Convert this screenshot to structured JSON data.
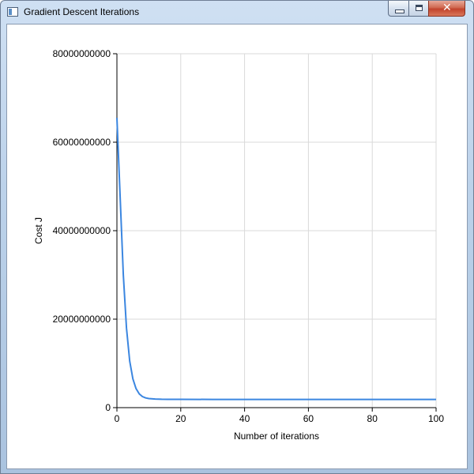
{
  "window": {
    "title": "Gradient Descent Iterations",
    "controls": {
      "minimize_icon": "minimize-icon",
      "maximize_icon": "maximize-icon",
      "close_icon": "close-icon",
      "close_glyph": "✕"
    }
  },
  "colors": {
    "line": "#3b86e0",
    "grid": "#d9d9d9",
    "axis": "#000000"
  },
  "chart_data": {
    "type": "line",
    "xlabel": "Number of iterations",
    "ylabel": "Cost J",
    "xlim": [
      0,
      100
    ],
    "ylim": [
      0,
      80000000000
    ],
    "x_ticks": [
      0,
      20,
      40,
      60,
      80,
      100
    ],
    "y_ticks": [
      0,
      20000000000,
      40000000000,
      60000000000,
      80000000000
    ],
    "x_tick_labels": [
      "0",
      "20",
      "40",
      "60",
      "80",
      "100"
    ],
    "y_tick_labels": [
      "0",
      "20000000000",
      "40000000000",
      "60000000000",
      "80000000000"
    ],
    "grid": true,
    "series": [
      {
        "x": [
          0,
          1,
          2,
          3,
          4,
          5,
          6,
          7,
          8,
          9,
          10,
          12,
          14,
          16,
          18,
          20,
          30,
          40,
          50,
          60,
          70,
          80,
          90,
          100
        ],
        "y": [
          65500000000,
          48000000000,
          30000000000,
          18000000000,
          10500000000,
          6500000000,
          4300000000,
          3100000000,
          2500000000,
          2200000000,
          2050000000,
          1950000000,
          1900000000,
          1880000000,
          1870000000,
          1870000000,
          1860000000,
          1860000000,
          1860000000,
          1860000000,
          1860000000,
          1860000000,
          1860000000,
          1860000000
        ]
      }
    ]
  }
}
